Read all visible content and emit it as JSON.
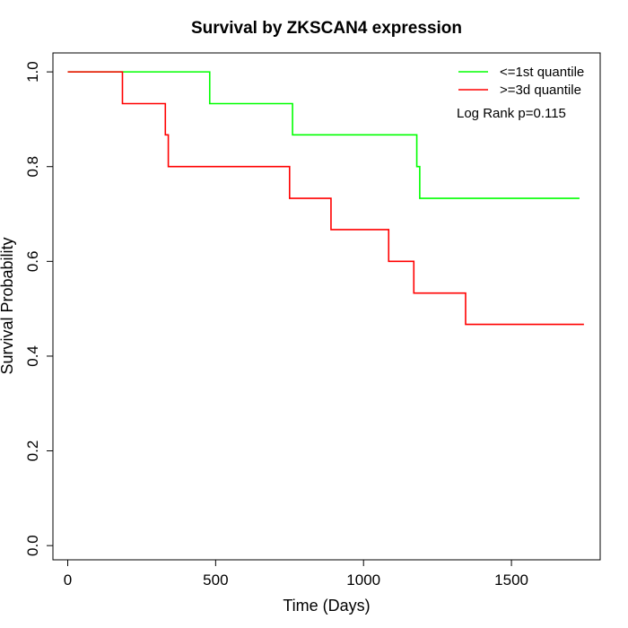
{
  "chart_data": {
    "type": "line",
    "title": "Survival by ZKSCAN4 expression",
    "xlabel": "Time (Days)",
    "ylabel": "Survival Probability",
    "xlim": [
      -50,
      1800
    ],
    "ylim": [
      -0.03,
      1.04
    ],
    "x_ticks": [
      0,
      500,
      1000,
      1500
    ],
    "x_tick_labels": [
      "0",
      "500",
      "1000",
      "1500"
    ],
    "y_ticks": [
      0.0,
      0.2,
      0.4,
      0.6,
      0.8,
      1.0
    ],
    "y_tick_labels": [
      "0.0",
      "0.2",
      "0.4",
      "0.6",
      "0.8",
      "1.0"
    ],
    "legend_position": "top-right",
    "annotation": "Log Rank p=0.115",
    "grid": false,
    "series": [
      {
        "name": "<=1st quantile",
        "color": "#00ff00",
        "step": true,
        "x": [
          0,
          480,
          760,
          1180,
          1190,
          1730
        ],
        "y": [
          1.0,
          0.933,
          0.867,
          0.8,
          0.733,
          0.733
        ]
      },
      {
        "name": ">=3d quantile",
        "color": "#ff0000",
        "step": true,
        "x": [
          0,
          185,
          330,
          340,
          750,
          890,
          1085,
          1170,
          1345,
          1745
        ],
        "y": [
          1.0,
          0.933,
          0.867,
          0.8,
          0.733,
          0.667,
          0.6,
          0.533,
          0.467,
          0.467
        ]
      }
    ]
  }
}
